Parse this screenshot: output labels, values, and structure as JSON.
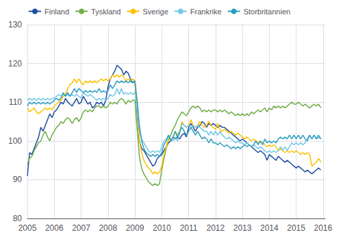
{
  "chart_data": {
    "type": "line",
    "x": [
      2005.0,
      2005.0833333333333,
      2005.1666666666667,
      2005.25,
      2005.3333333333333,
      2005.4166666666667,
      2005.5,
      2005.5833333333333,
      2005.6666666666667,
      2005.75,
      2005.8333333333333,
      2005.9166666666667,
      2006.0,
      2006.0833333333333,
      2006.1666666666667,
      2006.25,
      2006.3333333333333,
      2006.4166666666667,
      2006.5,
      2006.5833333333333,
      2006.6666666666667,
      2006.75,
      2006.8333333333333,
      2006.9166666666667,
      2007.0,
      2007.0833333333333,
      2007.1666666666667,
      2007.25,
      2007.3333333333333,
      2007.4166666666667,
      2007.5,
      2007.5833333333333,
      2007.6666666666667,
      2007.75,
      2007.8333333333333,
      2007.9166666666667,
      2008.0,
      2008.0833333333333,
      2008.1666666666667,
      2008.25,
      2008.3333333333333,
      2008.4166666666667,
      2008.5,
      2008.5833333333333,
      2008.6666666666667,
      2008.75,
      2008.8333333333333,
      2008.9166666666667,
      2009.0,
      2009.0833333333333,
      2009.1666666666667,
      2009.25,
      2009.3333333333333,
      2009.4166666666667,
      2009.5,
      2009.5833333333333,
      2009.6666666666667,
      2009.75,
      2009.8333333333333,
      2009.9166666666667,
      2010.0,
      2010.0833333333333,
      2010.1666666666667,
      2010.25,
      2010.3333333333333,
      2010.4166666666667,
      2010.5,
      2010.5833333333333,
      2010.6666666666667,
      2010.75,
      2010.8333333333333,
      2010.9166666666667,
      2011.0,
      2011.0833333333333,
      2011.1666666666667,
      2011.25,
      2011.3333333333333,
      2011.4166666666667,
      2011.5,
      2011.5833333333333,
      2011.6666666666667,
      2011.75,
      2011.8333333333333,
      2011.9166666666667,
      2012.0,
      2012.0833333333333,
      2012.1666666666667,
      2012.25,
      2012.3333333333333,
      2012.4166666666667,
      2012.5,
      2012.5833333333333,
      2012.6666666666667,
      2012.75,
      2012.8333333333333,
      2012.9166666666667,
      2013.0,
      2013.0833333333333,
      2013.1666666666667,
      2013.25,
      2013.3333333333333,
      2013.4166666666667,
      2013.5,
      2013.5833333333333,
      2013.6666666666667,
      2013.75,
      2013.8333333333333,
      2013.9166666666667,
      2014.0,
      2014.0833333333333,
      2014.1666666666667,
      2014.25,
      2014.3333333333333,
      2014.4166666666667,
      2014.5,
      2014.5833333333333,
      2014.6666666666667,
      2014.75,
      2014.8333333333333,
      2014.9166666666667,
      2015.0,
      2015.0833333333333,
      2015.1666666666667,
      2015.25,
      2015.3333333333333,
      2015.4166666666667,
      2015.5,
      2015.5833333333333,
      2015.6666666666667,
      2015.75,
      2015.8333333333333,
      2015.9166666666667
    ],
    "xlim": [
      2005.0,
      2016.08
    ],
    "xticks": [
      2005,
      2006,
      2007,
      2008,
      2009,
      2010,
      2011,
      2012,
      2013,
      2014,
      2015,
      2016
    ],
    "ylim": [
      80,
      130
    ],
    "yticks": [
      80,
      90,
      100,
      110,
      120,
      130
    ],
    "grid": true,
    "legend": "upper left",
    "series": [
      {
        "name": "Finland",
        "color": "#1f4e9e",
        "values": [
          91.0,
          97.0,
          96.5,
          98.0,
          99.5,
          101.0,
          103.5,
          102.5,
          104.0,
          105.5,
          107.0,
          106.0,
          107.5,
          108.0,
          109.0,
          110.0,
          109.5,
          111.0,
          110.0,
          109.5,
          109.0,
          110.0,
          111.0,
          109.5,
          110.0,
          111.5,
          110.5,
          109.5,
          110.0,
          108.5,
          109.0,
          110.0,
          109.5,
          110.0,
          109.0,
          110.5,
          114.0,
          116.0,
          117.0,
          118.0,
          119.5,
          119.0,
          118.5,
          117.0,
          118.0,
          117.5,
          116.0,
          115.0,
          115.5,
          107.0,
          100.0,
          98.0,
          97.5,
          96.5,
          95.5,
          94.5,
          93.5,
          94.0,
          95.5,
          96.0,
          96.5,
          97.5,
          98.5,
          99.5,
          100.0,
          101.0,
          100.5,
          101.0,
          100.5,
          101.5,
          102.0,
          101.0,
          103.5,
          104.5,
          103.5,
          102.5,
          103.5,
          104.0,
          105.0,
          104.5,
          103.5,
          104.5,
          104.0,
          104.5,
          104.0,
          103.5,
          104.0,
          103.5,
          103.5,
          103.0,
          102.5,
          102.0,
          101.5,
          101.0,
          100.5,
          100.0,
          100.5,
          100.0,
          99.5,
          99.0,
          98.5,
          98.0,
          97.5,
          97.0,
          97.5,
          97.0,
          96.5,
          95.0,
          96.5,
          96.0,
          95.5,
          95.0,
          96.0,
          95.5,
          95.0,
          94.5,
          95.0,
          94.5,
          94.0,
          93.5,
          93.0,
          93.5,
          93.0,
          92.5,
          92.0,
          92.5,
          92.0,
          91.5,
          92.0,
          92.5,
          93.0,
          92.5
        ]
      },
      {
        "name": "Tyskland",
        "color": "#70ad47",
        "values": [
          94.0,
          95.5,
          96.0,
          97.5,
          98.5,
          99.5,
          100.0,
          101.5,
          102.5,
          101.0,
          100.0,
          101.5,
          102.5,
          103.5,
          104.0,
          105.0,
          104.5,
          105.5,
          106.0,
          105.5,
          104.5,
          105.5,
          106.0,
          105.0,
          106.0,
          107.5,
          108.0,
          107.5,
          108.0,
          107.5,
          108.5,
          109.0,
          109.0,
          108.5,
          109.0,
          108.5,
          109.0,
          110.0,
          109.5,
          110.0,
          109.5,
          110.5,
          111.0,
          110.5,
          109.5,
          110.5,
          110.0,
          110.5,
          110.5,
          103.0,
          96.0,
          93.0,
          91.5,
          90.5,
          89.5,
          89.0,
          88.5,
          89.0,
          88.5,
          89.0,
          92.5,
          95.5,
          98.0,
          100.5,
          101.5,
          103.0,
          104.0,
          105.5,
          106.5,
          107.5,
          107.0,
          106.5,
          107.5,
          108.5,
          109.0,
          108.5,
          109.0,
          108.5,
          107.5,
          108.0,
          107.5,
          108.0,
          107.5,
          108.0,
          108.0,
          107.5,
          108.0,
          107.5,
          108.0,
          107.5,
          107.0,
          107.5,
          107.0,
          106.5,
          107.0,
          106.5,
          107.0,
          106.5,
          107.0,
          106.5,
          107.5,
          107.0,
          107.5,
          108.0,
          107.5,
          108.0,
          108.5,
          107.5,
          108.5,
          108.0,
          109.0,
          108.5,
          109.0,
          108.5,
          109.0,
          108.5,
          109.0,
          109.5,
          110.0,
          109.5,
          109.5,
          110.0,
          109.5,
          109.0,
          109.5,
          109.0,
          108.5,
          109.0,
          109.5,
          109.0,
          109.5,
          108.5
        ]
      },
      {
        "name": "Sverige",
        "color": "#ffc000",
        "values": [
          108.5,
          107.5,
          108.0,
          108.5,
          107.5,
          107.0,
          107.5,
          108.0,
          108.5,
          108.0,
          108.5,
          108.0,
          109.0,
          109.5,
          110.0,
          110.5,
          111.5,
          112.0,
          113.5,
          114.5,
          115.0,
          116.0,
          115.0,
          116.0,
          115.0,
          114.5,
          115.5,
          115.0,
          115.5,
          115.0,
          115.5,
          115.0,
          115.5,
          116.0,
          115.5,
          116.0,
          115.5,
          116.0,
          117.0,
          116.5,
          117.0,
          116.5,
          117.0,
          116.5,
          115.5,
          116.0,
          115.5,
          116.0,
          115.5,
          108.0,
          100.0,
          97.0,
          95.0,
          94.0,
          93.0,
          92.5,
          91.5,
          92.0,
          91.5,
          92.0,
          93.5,
          96.5,
          98.5,
          100.5,
          100.0,
          101.0,
          102.5,
          101.5,
          102.5,
          105.0,
          104.0,
          103.5,
          104.0,
          105.5,
          104.0,
          103.5,
          104.0,
          105.0,
          104.0,
          103.5,
          104.0,
          105.0,
          104.0,
          103.5,
          103.0,
          104.5,
          103.0,
          102.5,
          103.0,
          102.5,
          102.0,
          102.5,
          102.0,
          101.5,
          102.0,
          101.5,
          101.0,
          100.5,
          101.0,
          100.5,
          100.0,
          100.5,
          100.0,
          99.5,
          100.0,
          99.5,
          99.0,
          98.5,
          99.0,
          98.5,
          99.0,
          98.5,
          97.5,
          98.0,
          97.5,
          97.0,
          97.5,
          97.0,
          97.5,
          97.0,
          97.5,
          97.0,
          96.5,
          97.0,
          96.5,
          97.0,
          96.5,
          93.5,
          94.0,
          94.5,
          95.5,
          94.5
        ]
      },
      {
        "name": "Frankrike",
        "color": "#70c8e8",
        "values": [
          110.5,
          111.0,
          110.5,
          111.0,
          110.5,
          111.0,
          110.5,
          111.0,
          110.5,
          111.0,
          110.5,
          111.0,
          111.0,
          111.5,
          112.0,
          111.5,
          112.0,
          111.5,
          112.0,
          111.5,
          112.0,
          111.5,
          112.0,
          111.5,
          111.0,
          112.5,
          112.0,
          111.5,
          112.0,
          111.5,
          111.0,
          110.5,
          111.0,
          110.5,
          111.0,
          110.5,
          111.0,
          112.0,
          111.5,
          112.0,
          113.5,
          112.0,
          113.5,
          112.0,
          112.5,
          112.0,
          112.5,
          112.0,
          112.5,
          108.0,
          103.0,
          100.5,
          99.5,
          98.5,
          97.5,
          97.0,
          97.5,
          97.0,
          97.5,
          97.0,
          98.5,
          100.0,
          100.5,
          101.5,
          100.5,
          100.0,
          101.0,
          100.0,
          102.0,
          104.5,
          104.0,
          103.5,
          104.0,
          103.5,
          104.0,
          103.5,
          104.0,
          103.5,
          103.0,
          102.5,
          102.5,
          101.5,
          102.5,
          101.5,
          102.5,
          101.5,
          102.5,
          101.5,
          101.0,
          100.5,
          101.0,
          100.5,
          100.0,
          99.5,
          100.0,
          99.5,
          99.5,
          99.0,
          99.5,
          99.0,
          98.5,
          99.0,
          98.5,
          98.0,
          98.5,
          98.0,
          97.5,
          97.0,
          97.5,
          97.0,
          97.5,
          97.0,
          97.5,
          98.5,
          97.5,
          98.5,
          97.5,
          98.5,
          99.5,
          99.0,
          99.5,
          99.0,
          99.5,
          99.0,
          99.5,
          100.5,
          101.5,
          100.5,
          101.5,
          100.5,
          101.0,
          100.5
        ]
      },
      {
        "name": "Storbritannien",
        "color": "#2e9dbf",
        "values": [
          109.0,
          110.0,
          109.5,
          110.0,
          109.5,
          110.0,
          109.5,
          110.0,
          109.5,
          110.0,
          109.5,
          110.0,
          110.5,
          111.0,
          110.5,
          111.0,
          112.5,
          111.5,
          112.5,
          111.5,
          112.5,
          113.5,
          112.5,
          113.5,
          113.0,
          112.5,
          113.0,
          112.5,
          113.0,
          112.5,
          113.0,
          112.5,
          113.5,
          112.5,
          113.0,
          112.5,
          113.0,
          114.5,
          113.5,
          114.5,
          115.5,
          115.0,
          115.5,
          115.0,
          115.5,
          115.0,
          115.5,
          115.0,
          115.5,
          110.5,
          104.0,
          100.0,
          98.0,
          97.0,
          96.5,
          96.0,
          96.5,
          96.0,
          96.5,
          96.0,
          97.0,
          99.0,
          100.0,
          101.5,
          100.0,
          101.0,
          102.5,
          101.0,
          102.5,
          103.5,
          102.5,
          101.5,
          102.5,
          103.5,
          102.5,
          101.5,
          102.5,
          101.5,
          100.5,
          101.0,
          100.5,
          99.5,
          100.5,
          99.5,
          99.5,
          99.0,
          99.5,
          99.0,
          98.5,
          99.0,
          98.5,
          98.0,
          98.5,
          98.0,
          98.5,
          98.0,
          98.5,
          99.0,
          98.5,
          99.0,
          98.5,
          99.0,
          100.0,
          99.0,
          100.0,
          99.0,
          100.5,
          99.5,
          100.0,
          99.5,
          100.0,
          99.5,
          100.5,
          101.0,
          100.5,
          101.0,
          100.5,
          101.5,
          100.5,
          101.5,
          100.5,
          101.5,
          100.5,
          101.5,
          100.5,
          100.0,
          101.5,
          100.5,
          101.5,
          100.5,
          101.5,
          100.5
        ]
      }
    ]
  }
}
